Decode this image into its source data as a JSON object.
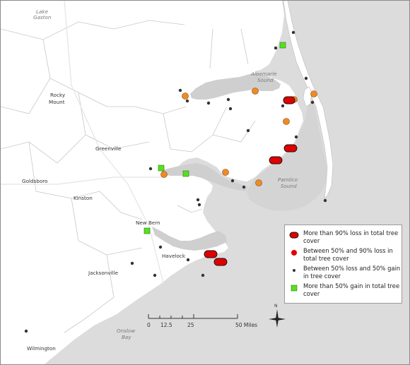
{
  "places": [
    {
      "name": "Rocky",
      "key": "rocky"
    },
    {
      "name": "Mount",
      "key": "mount"
    },
    {
      "name": "Greenville",
      "key": "greenville"
    },
    {
      "name": "Goldsboro",
      "key": "goldsboro"
    },
    {
      "name": "Kinston",
      "key": "kinston"
    },
    {
      "name": "New Bern",
      "key": "newbern"
    },
    {
      "name": "Havelock",
      "key": "havelock"
    },
    {
      "name": "Jacksonville",
      "key": "jacksonville"
    },
    {
      "name": "Wilmington",
      "key": "wilmington"
    }
  ],
  "water_labels": {
    "lake_line1": "Lake",
    "lake_line2": "Gaston",
    "albemarle_line1": "Albemarle",
    "albemarle_line2": "Sound",
    "pamlico_line1": "Pamlico",
    "pamlico_line2": "Sound",
    "onslow_line1": "Onslow",
    "onslow_line2": "Bay"
  },
  "legend": {
    "items": [
      {
        "label": "More than 90% loss in total tree cover",
        "symbol": "red-capsule",
        "color": "#e00000"
      },
      {
        "label": "Between 50% and 90% loss in total tree cover",
        "symbol": "red-circle",
        "color": "#e00000"
      },
      {
        "label": "Between 50% loss and 50% gain in tree cover",
        "symbol": "dark-dot",
        "color": "#333333"
      },
      {
        "label": "More than 50% gain in total tree cover",
        "symbol": "green-square",
        "color": "#55e020"
      }
    ]
  },
  "scale_bar": {
    "ticks": [
      "0",
      "12.5",
      "25",
      "50 Miles"
    ]
  },
  "north_arrow": {
    "label": "N"
  },
  "colors": {
    "land": "#ffffff",
    "water": "#dcdcdc",
    "loss_over_90": "#e00000",
    "loss_50_90_orange": "#f08a24",
    "neutral": "#333333",
    "gain": "#55e020"
  }
}
